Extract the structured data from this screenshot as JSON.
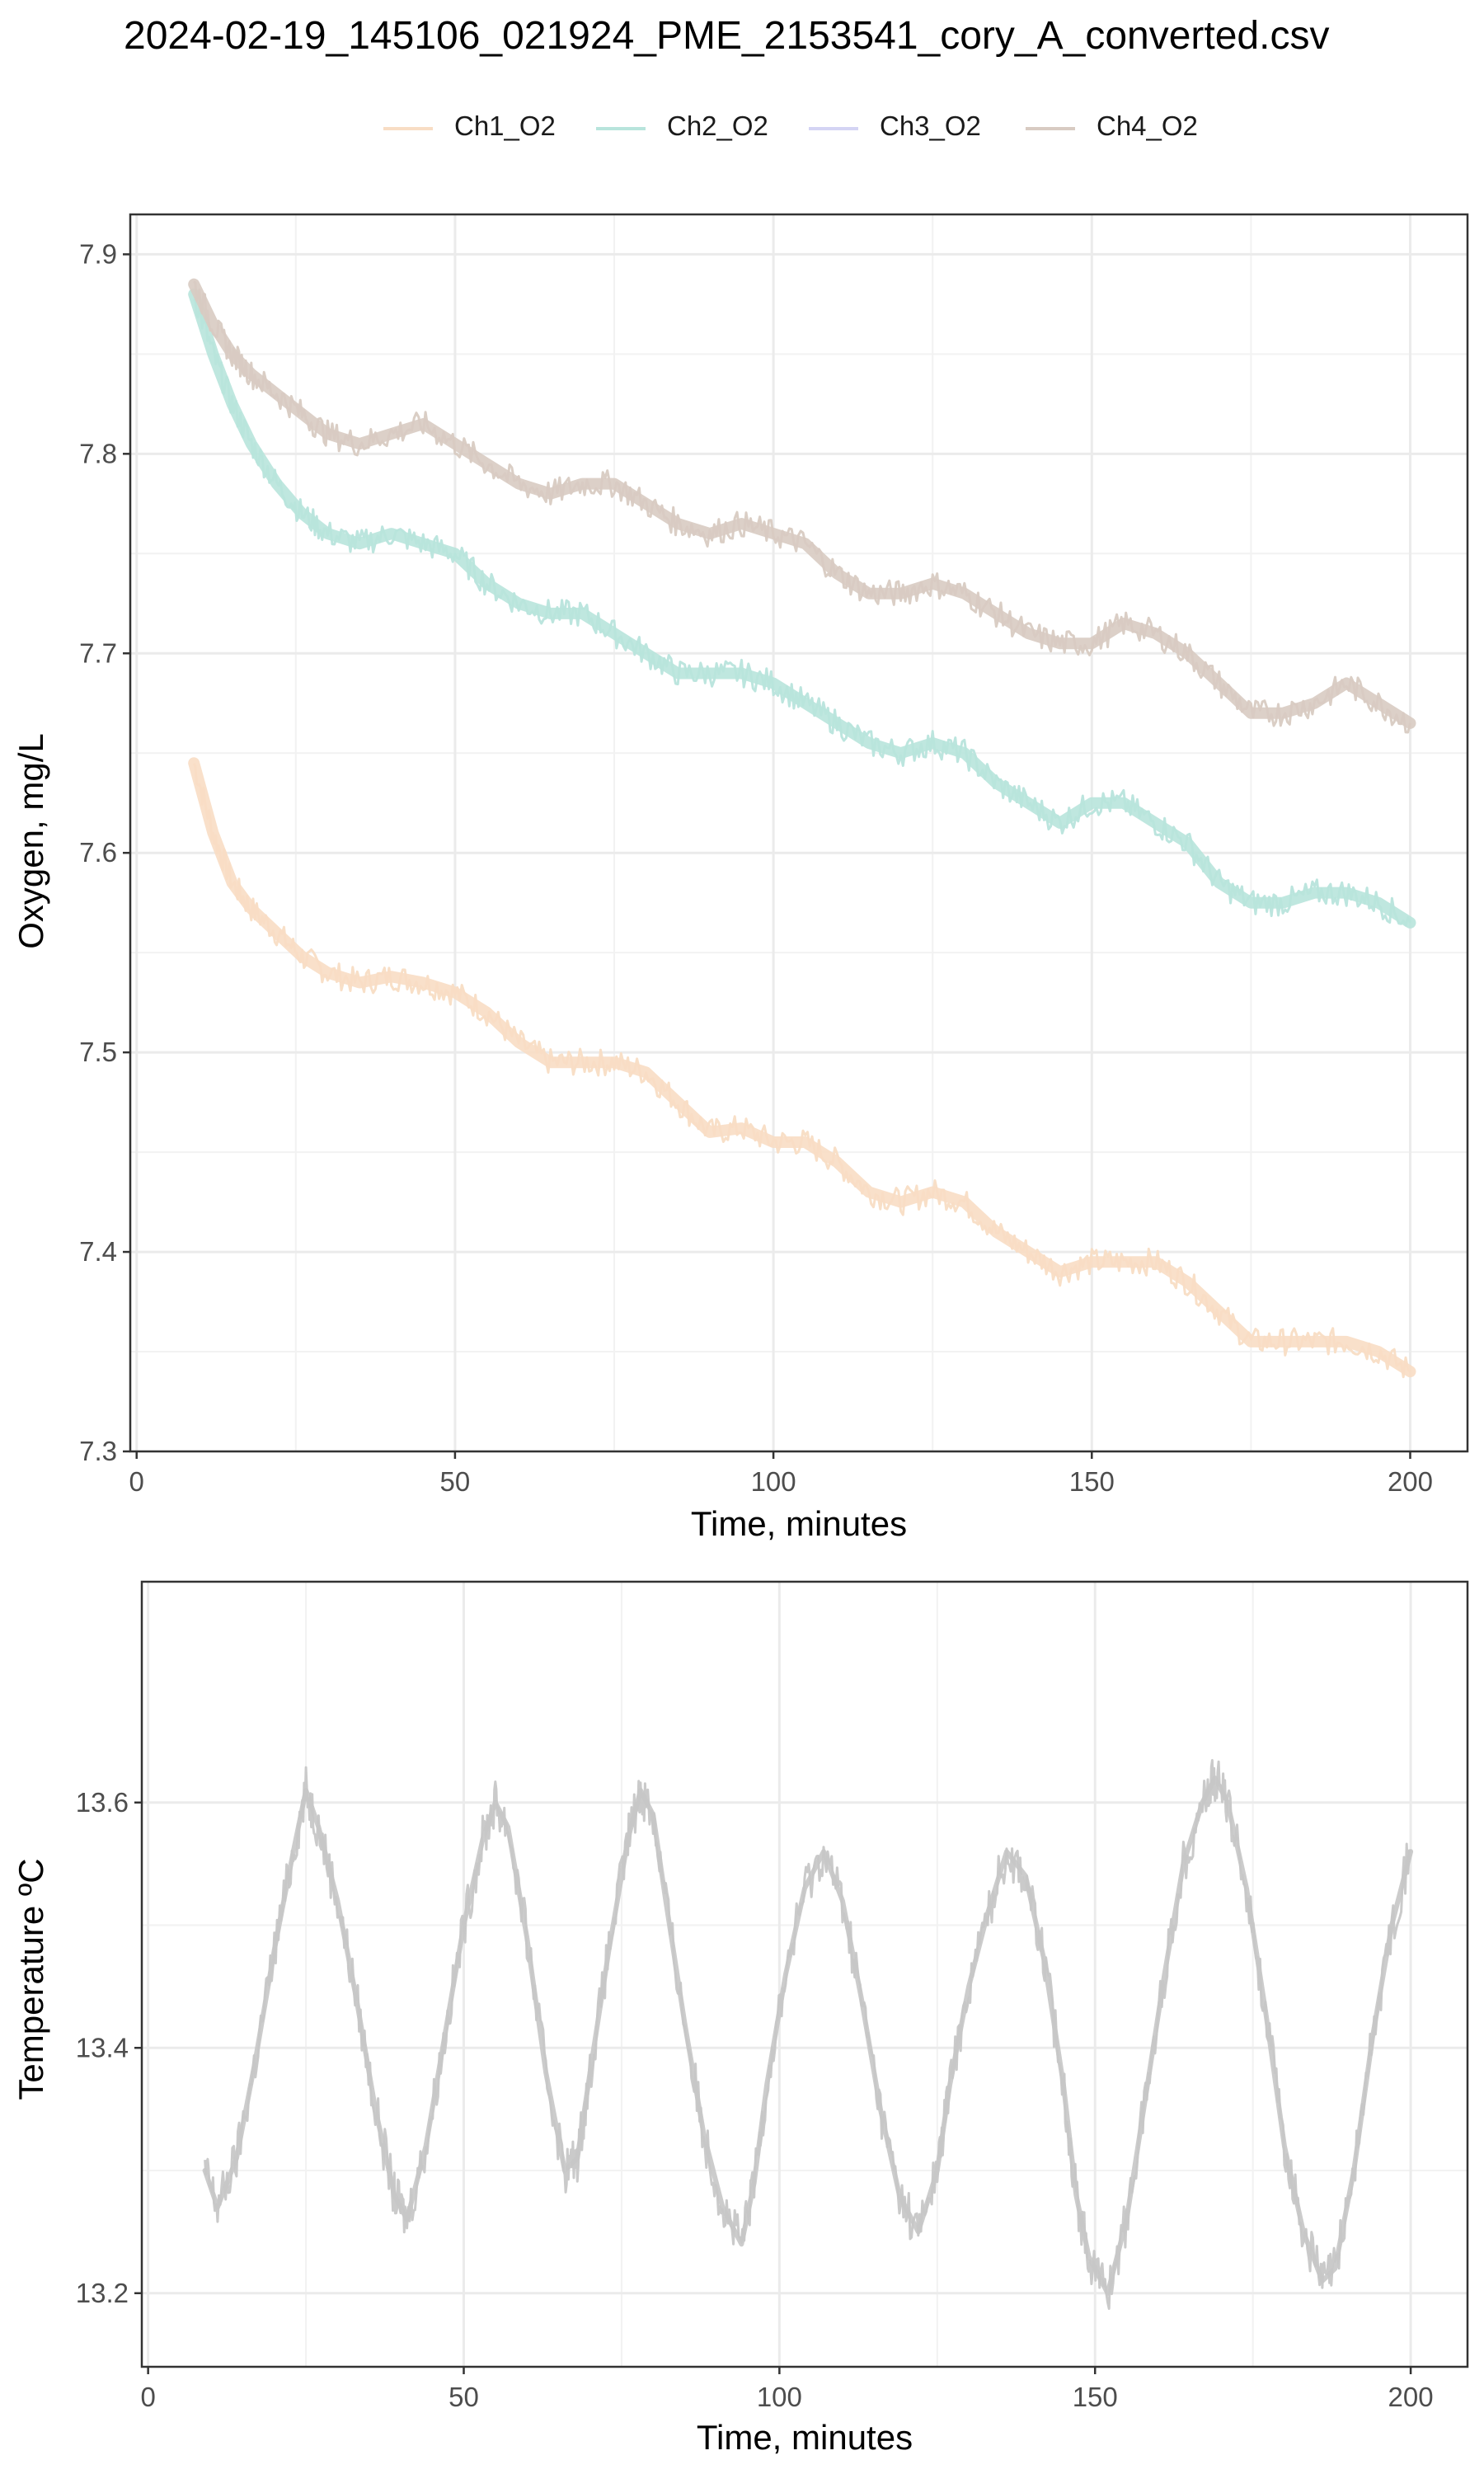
{
  "title": "2024-02-19_145106_021924_PME_2153541_cory_A_converted.csv",
  "legend": [
    {
      "name": "Ch1_O2",
      "color": "#f8ddc4"
    },
    {
      "name": "Ch2_O2",
      "color": "#b8e4dc"
    },
    {
      "name": "Ch3_O2",
      "color": "#d4d4f4"
    },
    {
      "name": "Ch4_O2",
      "color": "#d8cbc2"
    }
  ],
  "chart_data": [
    {
      "type": "line",
      "xlabel": "Time, minutes",
      "ylabel": "Oxygen, mg/L",
      "xlim": [
        -1,
        209
      ],
      "ylim": [
        7.3,
        7.92
      ],
      "xticks": [
        0,
        50,
        100,
        150,
        200
      ],
      "yticks": [
        7.3,
        7.4,
        7.5,
        7.6,
        7.7,
        7.8,
        7.9
      ],
      "grid": true,
      "legend_position": "top",
      "series": [
        {
          "name": "Ch1_O2",
          "color": "#f8ddc4",
          "x": [
            9,
            12,
            15,
            18,
            22,
            26,
            30,
            35,
            40,
            45,
            50,
            55,
            60,
            65,
            70,
            75,
            80,
            85,
            90,
            95,
            100,
            105,
            110,
            115,
            120,
            125,
            130,
            135,
            140,
            145,
            150,
            155,
            160,
            165,
            170,
            175,
            180,
            185,
            190,
            195,
            200
          ],
          "y": [
            7.645,
            7.61,
            7.585,
            7.572,
            7.56,
            7.548,
            7.54,
            7.535,
            7.538,
            7.535,
            7.53,
            7.52,
            7.505,
            7.495,
            7.495,
            7.495,
            7.49,
            7.475,
            7.46,
            7.462,
            7.455,
            7.455,
            7.445,
            7.43,
            7.425,
            7.43,
            7.425,
            7.41,
            7.4,
            7.39,
            7.395,
            7.395,
            7.395,
            7.385,
            7.37,
            7.355,
            7.355,
            7.355,
            7.355,
            7.35,
            7.34
          ]
        },
        {
          "name": "Ch2_O2",
          "color": "#b8e4dc",
          "x": [
            9,
            12,
            15,
            18,
            22,
            26,
            30,
            35,
            40,
            45,
            50,
            55,
            60,
            65,
            70,
            75,
            80,
            85,
            90,
            95,
            100,
            105,
            110,
            115,
            120,
            125,
            130,
            135,
            140,
            145,
            150,
            155,
            160,
            165,
            170,
            175,
            180,
            185,
            190,
            195,
            200
          ],
          "y": [
            7.88,
            7.85,
            7.825,
            7.805,
            7.785,
            7.77,
            7.76,
            7.755,
            7.76,
            7.755,
            7.75,
            7.735,
            7.725,
            7.72,
            7.72,
            7.71,
            7.7,
            7.69,
            7.69,
            7.69,
            7.685,
            7.675,
            7.665,
            7.655,
            7.65,
            7.655,
            7.65,
            7.635,
            7.625,
            7.615,
            7.625,
            7.625,
            7.615,
            7.605,
            7.585,
            7.575,
            7.575,
            7.58,
            7.58,
            7.575,
            7.565
          ]
        },
        {
          "name": "Ch4_O2",
          "color": "#d8cbc2",
          "x": [
            9,
            12,
            15,
            18,
            22,
            26,
            30,
            35,
            40,
            45,
            50,
            55,
            60,
            65,
            70,
            75,
            80,
            85,
            90,
            95,
            100,
            105,
            110,
            115,
            120,
            125,
            130,
            135,
            140,
            145,
            150,
            155,
            160,
            165,
            170,
            175,
            180,
            185,
            190,
            195,
            200
          ],
          "y": [
            7.885,
            7.865,
            7.85,
            7.84,
            7.83,
            7.82,
            7.81,
            7.805,
            7.81,
            7.815,
            7.805,
            7.795,
            7.785,
            7.78,
            7.785,
            7.785,
            7.775,
            7.765,
            7.76,
            7.765,
            7.76,
            7.755,
            7.74,
            7.73,
            7.73,
            7.735,
            7.73,
            7.72,
            7.71,
            7.705,
            7.705,
            7.715,
            7.71,
            7.7,
            7.685,
            7.67,
            7.67,
            7.675,
            7.685,
            7.675,
            7.665
          ]
        }
      ]
    },
    {
      "type": "line",
      "xlabel": "Time, minutes",
      "ylabel": "Temperature ºC",
      "xlim": [
        -1,
        209
      ],
      "ylim": [
        13.14,
        13.78
      ],
      "xticks": [
        0,
        50,
        100,
        150,
        200
      ],
      "yticks": [
        13.2,
        13.4,
        13.6
      ],
      "grid": true,
      "series": [
        {
          "color": "#c7c7c7",
          "x": [
            9,
            11,
            14,
            17,
            20,
            23,
            25,
            27,
            30,
            33,
            36,
            39,
            41,
            44,
            47,
            50,
            53,
            55,
            57,
            60,
            63,
            66,
            68,
            70,
            73,
            76,
            78,
            80,
            82,
            85,
            88,
            91,
            94,
            96,
            98,
            101,
            104,
            107,
            110,
            113,
            116,
            119,
            122,
            125,
            127,
            130,
            133,
            136,
            139,
            142,
            145,
            147,
            149,
            152,
            155,
            158,
            161,
            164,
            167,
            169,
            171,
            174,
            177,
            180,
            183,
            186,
            188,
            191,
            194,
            197,
            200
          ],
          "y": [
            13.3,
            13.27,
            13.31,
            13.39,
            13.48,
            13.56,
            13.61,
            13.58,
            13.52,
            13.44,
            13.35,
            13.28,
            13.26,
            13.32,
            13.41,
            13.5,
            13.57,
            13.6,
            13.58,
            13.49,
            13.38,
            13.3,
            13.31,
            13.38,
            13.48,
            13.57,
            13.61,
            13.59,
            13.52,
            13.42,
            13.33,
            13.27,
            13.24,
            13.29,
            13.37,
            13.46,
            13.53,
            13.56,
            13.52,
            13.44,
            13.35,
            13.28,
            13.25,
            13.3,
            13.37,
            13.45,
            13.51,
            13.56,
            13.54,
            13.47,
            13.37,
            13.28,
            13.23,
            13.2,
            13.26,
            13.36,
            13.46,
            13.55,
            13.6,
            13.62,
            13.6,
            13.53,
            13.43,
            13.32,
            13.25,
            13.21,
            13.22,
            13.3,
            13.41,
            13.5,
            13.56
          ]
        }
      ]
    }
  ]
}
